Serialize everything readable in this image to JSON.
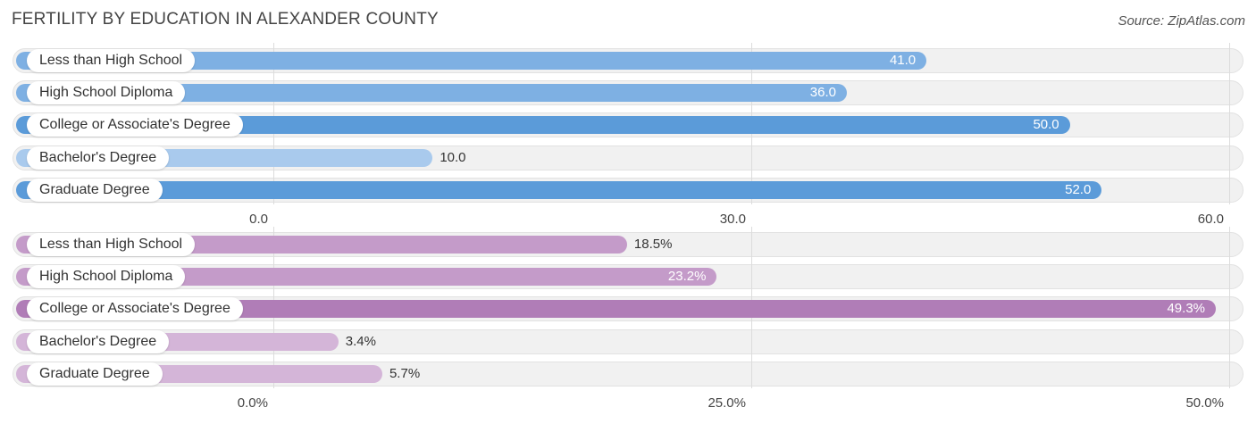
{
  "title": "FERTILITY BY EDUCATION IN ALEXANDER COUNTY",
  "source": "Source: ZipAtlas.com",
  "colors": {
    "blue_strong": "#5b9bd9",
    "blue_mid": "#7eb0e3",
    "blue_light": "#a9caed",
    "purple_strong": "#b07db7",
    "purple_mid": "#c49bc9",
    "purple_light": "#d4b5d8"
  },
  "chart_data": [
    {
      "type": "bar",
      "orientation": "horizontal",
      "categories": [
        "Less than High School",
        "High School Diploma",
        "College or Associate's Degree",
        "Bachelor's Degree",
        "Graduate Degree"
      ],
      "values": [
        41.0,
        36.0,
        50.0,
        10.0,
        52.0
      ],
      "value_labels": [
        "41.0",
        "36.0",
        "50.0",
        "10.0",
        "52.0"
      ],
      "xlim": [
        0,
        60
      ],
      "ticks": [
        0,
        30,
        60
      ],
      "tick_labels": [
        "0.0",
        "30.0",
        "60.0"
      ],
      "grid": true
    },
    {
      "type": "bar",
      "orientation": "horizontal",
      "categories": [
        "Less than High School",
        "High School Diploma",
        "College or Associate's Degree",
        "Bachelor's Degree",
        "Graduate Degree"
      ],
      "values": [
        18.5,
        23.2,
        49.3,
        3.4,
        5.7
      ],
      "value_labels": [
        "18.5%",
        "23.2%",
        "49.3%",
        "3.4%",
        "5.7%"
      ],
      "xlim": [
        0,
        50
      ],
      "ticks": [
        0,
        25,
        50
      ],
      "tick_labels": [
        "0.0%",
        "25.0%",
        "50.0%"
      ],
      "grid": true
    }
  ]
}
